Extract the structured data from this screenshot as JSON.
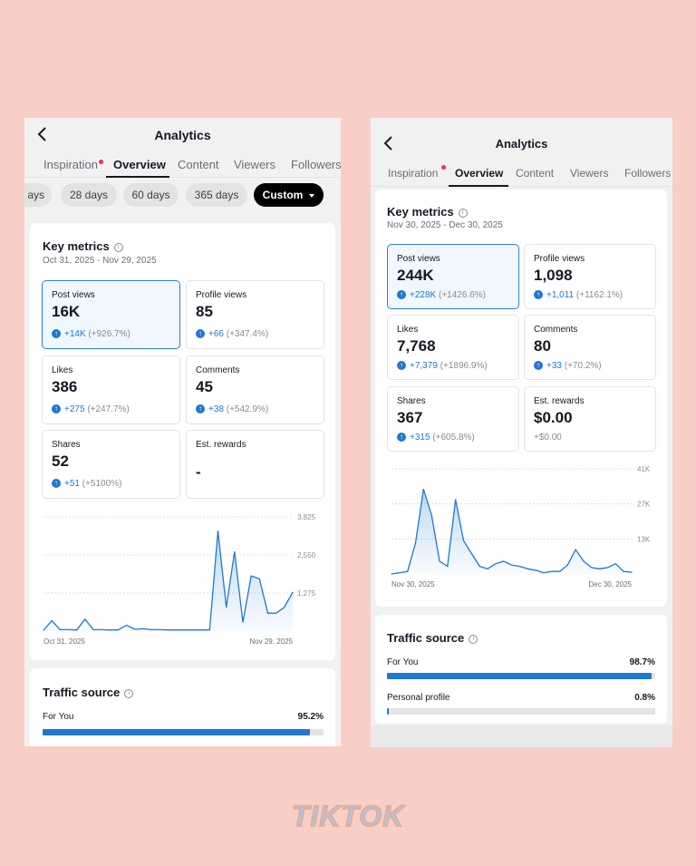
{
  "brand": "TIKTOK",
  "colors": {
    "accent": "#1e78d2",
    "background": "#f7cfc7",
    "notification_dot": "#fe2c55"
  },
  "left": {
    "title": "Analytics",
    "tabs": [
      "Inspiration",
      "Overview",
      "Content",
      "Viewers",
      "Followers"
    ],
    "active_tab": "Overview",
    "pills": [
      "ays",
      "28 days",
      "60 days",
      "365 days",
      "Custom"
    ],
    "selected_pill": "Custom",
    "key_metrics": {
      "title": "Key metrics",
      "date_range": "Oct 31, 2025 - Nov 29, 2025",
      "metrics": [
        {
          "label": "Post views",
          "value": "16K",
          "change": "+14K",
          "pct": "(+926.7%)",
          "selected": true
        },
        {
          "label": "Profile views",
          "value": "85",
          "change": "+66",
          "pct": "(+347.4%)"
        },
        {
          "label": "Likes",
          "value": "386",
          "change": "+275",
          "pct": "(+247.7%)"
        },
        {
          "label": "Comments",
          "value": "45",
          "change": "+38",
          "pct": "(+542.9%)"
        },
        {
          "label": "Shares",
          "value": "52",
          "change": "+51",
          "pct": "(+5100%)"
        },
        {
          "label": "Est. rewards",
          "value": "-",
          "change": "",
          "pct": ""
        }
      ]
    },
    "chart_data": {
      "type": "area",
      "x_labels": [
        "Oct 31, 2025",
        "Nov 29, 2025"
      ],
      "y_ticks": [
        "3,825",
        "2,550",
        "1,275"
      ],
      "ylim": [
        0,
        3825
      ],
      "values": [
        30,
        350,
        50,
        50,
        40,
        400,
        50,
        50,
        40,
        40,
        200,
        60,
        80,
        50,
        50,
        40,
        40,
        40,
        40,
        40,
        40,
        3350,
        800,
        2650,
        300,
        1850,
        1750,
        600,
        600,
        800,
        1300
      ]
    },
    "traffic_source": {
      "title": "Traffic source",
      "rows": [
        {
          "label": "For You",
          "pct": "95.2%",
          "value": 0.952
        }
      ]
    }
  },
  "right": {
    "title": "Analytics",
    "tabs": [
      "Inspiration",
      "Overview",
      "Content",
      "Viewers",
      "Followers"
    ],
    "active_tab": "Overview",
    "key_metrics": {
      "title": "Key metrics",
      "date_range": "Nov 30, 2025 - Dec 30, 2025",
      "metrics": [
        {
          "label": "Post views",
          "value": "244K",
          "change": "+228K",
          "pct": "(+1426.6%)",
          "selected": true
        },
        {
          "label": "Profile views",
          "value": "1,098",
          "change": "+1,011",
          "pct": "(+1162.1%)"
        },
        {
          "label": "Likes",
          "value": "7,768",
          "change": "+7,379",
          "pct": "(+1896.9%)"
        },
        {
          "label": "Comments",
          "value": "80",
          "change": "+33",
          "pct": "(+70.2%)"
        },
        {
          "label": "Shares",
          "value": "367",
          "change": "+315",
          "pct": "(+605.8%)"
        },
        {
          "label": "Est. rewards",
          "value": "$0.00",
          "change": "+$0.00",
          "pct": "",
          "zero": true
        }
      ]
    },
    "chart_data": {
      "type": "area",
      "x_labels": [
        "Nov 30, 2025",
        "Dec 30, 2025"
      ],
      "y_ticks": [
        "41K",
        "27K",
        "13K"
      ],
      "ylim": [
        0,
        41000
      ],
      "values": [
        0,
        500,
        1000,
        12000,
        33000,
        23000,
        5000,
        3000,
        29000,
        13000,
        8000,
        3000,
        2000,
        4000,
        5000,
        3500,
        3000,
        2000,
        1500,
        500,
        1000,
        1000,
        3500,
        9500,
        5000,
        2500,
        2000,
        2500,
        4000,
        1000,
        700
      ]
    },
    "traffic_source": {
      "title": "Traffic source",
      "rows": [
        {
          "label": "For You",
          "pct": "98.7%",
          "value": 0.987
        },
        {
          "label": "Personal profile",
          "pct": "0.8%",
          "value": 0.008
        }
      ]
    }
  }
}
